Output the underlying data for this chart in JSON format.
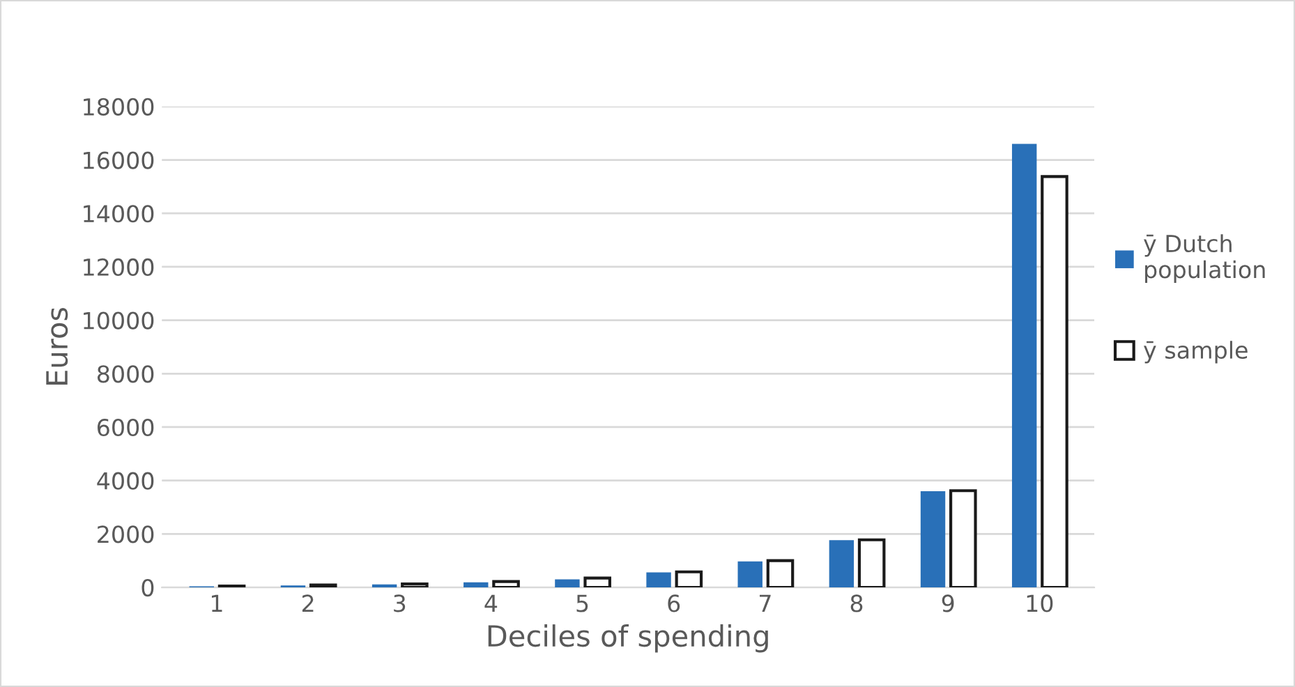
{
  "chart_data": {
    "type": "bar",
    "xlabel": "Deciles of spending",
    "ylabel": "Euros",
    "categories": [
      "1",
      "2",
      "3",
      "4",
      "5",
      "6",
      "7",
      "8",
      "9",
      "10"
    ],
    "series": [
      {
        "name": "ȳ Dutch population",
        "color": "#2970b8",
        "values": [
          40,
          70,
          110,
          190,
          300,
          560,
          970,
          1770,
          3600,
          16600
        ]
      },
      {
        "name": "ȳ sample",
        "color": "#ffffff",
        "values": [
          50,
          90,
          130,
          220,
          350,
          580,
          1000,
          1780,
          3620,
          15380
        ]
      }
    ],
    "ylim": [
      0,
      18000
    ],
    "yticks": [
      0,
      2000,
      4000,
      6000,
      8000,
      10000,
      12000,
      14000,
      16000,
      18000
    ],
    "grid": "y",
    "legend": "right"
  }
}
